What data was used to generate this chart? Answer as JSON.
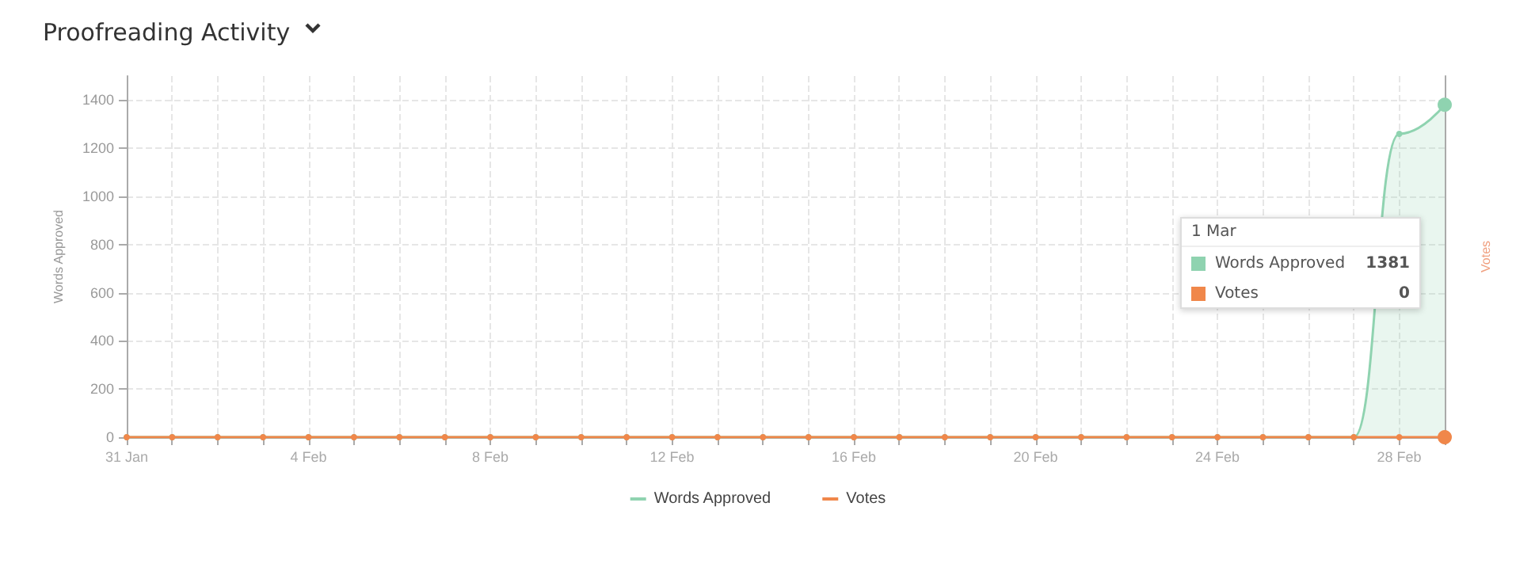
{
  "chart_data": {
    "type": "line",
    "title": "Proofreading Activity",
    "ylabel": "Words Approved",
    "y2label": "Votes",
    "categories": [
      "31 Jan",
      null,
      null,
      null,
      "4 Feb",
      null,
      null,
      null,
      "8 Feb",
      null,
      null,
      null,
      "12 Feb",
      null,
      null,
      null,
      "16 Feb",
      null,
      null,
      null,
      "20 Feb",
      null,
      null,
      null,
      "24 Feb",
      null,
      null,
      null,
      "28 Feb",
      null
    ],
    "series": [
      {
        "name": "Words Approved",
        "type": "area",
        "color": "#8fd3b0",
        "values": [
          0,
          0,
          0,
          0,
          0,
          0,
          0,
          0,
          0,
          0,
          0,
          0,
          0,
          0,
          0,
          0,
          0,
          0,
          0,
          0,
          0,
          0,
          0,
          0,
          0,
          0,
          0,
          0,
          1260,
          1381
        ]
      },
      {
        "name": "Votes",
        "color": "#f0874a",
        "values": [
          0,
          0,
          0,
          0,
          0,
          0,
          0,
          0,
          0,
          0,
          0,
          0,
          0,
          0,
          0,
          0,
          0,
          0,
          0,
          0,
          0,
          0,
          0,
          0,
          0,
          0,
          0,
          0,
          0,
          0
        ]
      }
    ],
    "ylim": [
      0,
      1500
    ],
    "yticks": [
      0,
      200,
      400,
      600,
      800,
      1000,
      1200,
      1400
    ],
    "grid": true,
    "legend": "bottom",
    "marker": "circle",
    "annotations": [
      "1 Mar",
      "1381",
      "0"
    ]
  }
}
